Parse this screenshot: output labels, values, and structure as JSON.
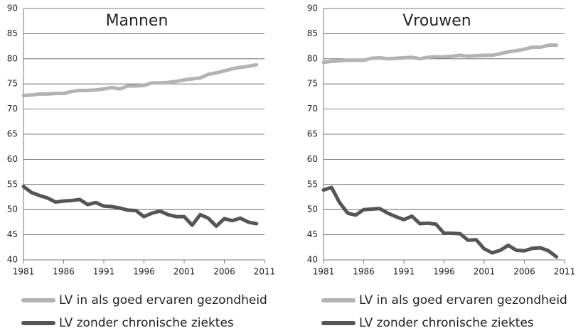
{
  "chart_data": [
    {
      "type": "line",
      "title": "Mannen",
      "x": [
        1981,
        1982,
        1983,
        1984,
        1985,
        1986,
        1987,
        1988,
        1989,
        1990,
        1991,
        1992,
        1993,
        1994,
        1995,
        1996,
        1997,
        1998,
        1999,
        2000,
        2001,
        2002,
        2003,
        2004,
        2005,
        2006,
        2007,
        2008,
        2009,
        2010
      ],
      "series": [
        {
          "name": "LV in als goed ervaren gezondheid",
          "color": "#b3b3b3",
          "values": [
            72.7,
            72.8,
            73.0,
            73.0,
            73.1,
            73.1,
            73.5,
            73.7,
            73.7,
            73.8,
            74.0,
            74.3,
            74.0,
            74.6,
            74.6,
            74.7,
            75.2,
            75.2,
            75.3,
            75.5,
            75.8,
            76.0,
            76.2,
            76.9,
            77.2,
            77.6,
            78.0,
            78.3,
            78.5,
            78.8
          ]
        },
        {
          "name": "LV zonder chronische ziektes",
          "color": "#555555",
          "values": [
            54.6,
            53.4,
            52.8,
            52.3,
            51.5,
            51.7,
            51.8,
            52.0,
            51.0,
            51.4,
            50.7,
            50.6,
            50.3,
            49.9,
            49.8,
            48.6,
            49.3,
            49.7,
            49.0,
            48.6,
            48.6,
            46.9,
            49.0,
            48.3,
            46.7,
            48.2,
            47.8,
            48.3,
            47.5,
            47.2
          ]
        }
      ],
      "xlim": [
        1981,
        2011
      ],
      "xticks": [
        1981,
        1986,
        1991,
        1996,
        2001,
        2006,
        2011
      ],
      "ylim": [
        40,
        90
      ],
      "yticks": [
        40,
        45,
        50,
        55,
        60,
        65,
        70,
        75,
        80,
        85,
        90
      ],
      "grid": true
    },
    {
      "type": "line",
      "title": "Vrouwen",
      "x": [
        1981,
        1982,
        1983,
        1984,
        1985,
        1986,
        1987,
        1988,
        1989,
        1990,
        1991,
        1992,
        1993,
        1994,
        1995,
        1996,
        1997,
        1998,
        1999,
        2000,
        2001,
        2002,
        2003,
        2004,
        2005,
        2006,
        2007,
        2008,
        2009,
        2010
      ],
      "series": [
        {
          "name": "LV in als goed ervaren gezondheid",
          "color": "#b3b3b3",
          "values": [
            79.3,
            79.5,
            79.6,
            79.7,
            79.7,
            79.7,
            80.1,
            80.2,
            80.0,
            80.1,
            80.2,
            80.3,
            80.0,
            80.3,
            80.4,
            80.4,
            80.5,
            80.7,
            80.5,
            80.6,
            80.7,
            80.7,
            81.0,
            81.4,
            81.6,
            81.9,
            82.3,
            82.3,
            82.7,
            82.7
          ]
        },
        {
          "name": "LV zonder chronische ziektes",
          "color": "#555555",
          "values": [
            53.9,
            54.4,
            51.4,
            49.3,
            48.9,
            50.0,
            50.1,
            50.2,
            49.3,
            48.6,
            48.0,
            48.7,
            47.2,
            47.3,
            47.1,
            45.3,
            45.3,
            45.2,
            43.9,
            44.0,
            42.2,
            41.4,
            41.9,
            42.9,
            41.9,
            41.8,
            42.3,
            42.4,
            41.8,
            40.6
          ]
        }
      ],
      "xlim": [
        1981,
        2011
      ],
      "xticks": [
        1981,
        1986,
        1991,
        1996,
        2001,
        2006,
        2011
      ],
      "ylim": [
        40,
        90
      ],
      "yticks": [
        40,
        45,
        50,
        55,
        60,
        65,
        70,
        75,
        80,
        85,
        90
      ],
      "grid": true
    }
  ]
}
